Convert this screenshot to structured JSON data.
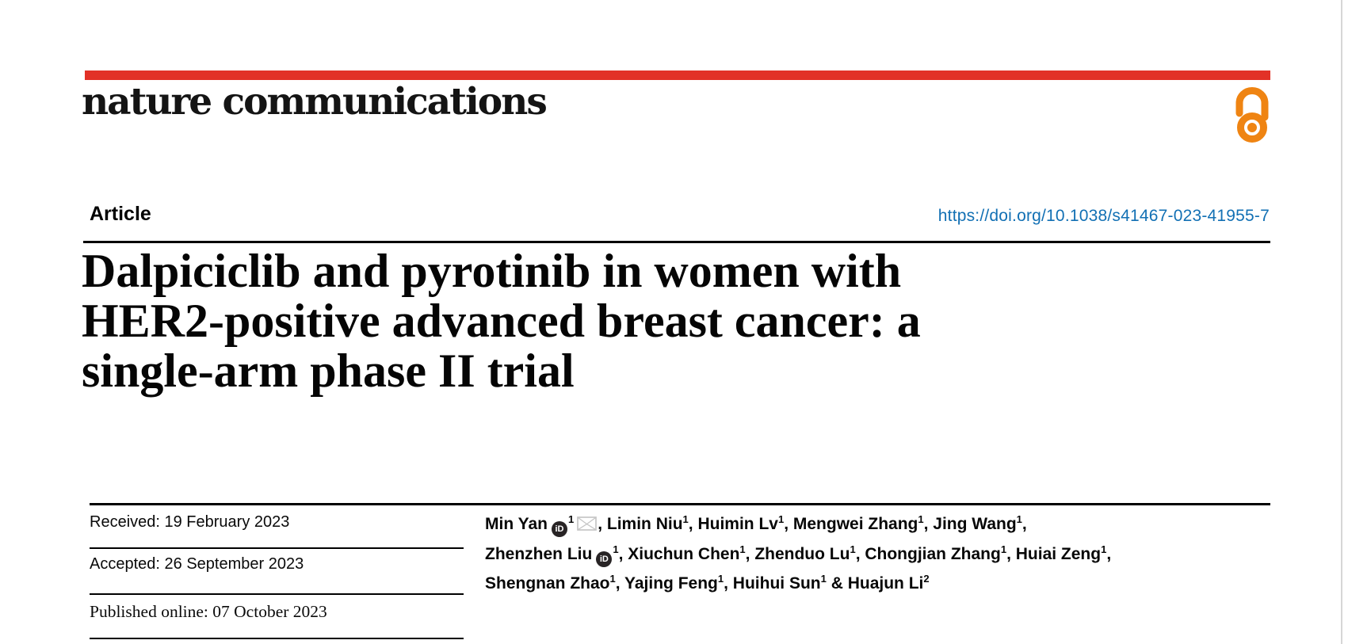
{
  "journal": {
    "name": "nature communications",
    "open_access_icon": "open-access-padlock"
  },
  "colors": {
    "brand_red": "#e23127",
    "open_access_orange": "#ef8412",
    "link_blue": "#1270b4",
    "envelope_gray": "#c6c6c6",
    "text_black": "#050505"
  },
  "article": {
    "kicker": "Article",
    "doi": "https://doi.org/10.1038/s41467-023-41955-7",
    "title_lines": [
      "Dalpiciclib and pyrotinib in women with",
      "HER2-positive advanced breast cancer: a",
      "single-arm phase II trial"
    ]
  },
  "dates": {
    "received": {
      "label": "Received:",
      "value": "19 February 2023"
    },
    "accepted": {
      "label": "Accepted:",
      "value": "26 September 2023"
    },
    "published": {
      "label": "Published online:",
      "value": "07 October 2023"
    }
  },
  "authors": {
    "orcid_badge_text": "iD",
    "lines": [
      [
        {
          "name": "Min Yan",
          "sup": "1",
          "orcid": true,
          "email": true,
          "trailing": ", "
        },
        {
          "name": "Limin Niu",
          "sup": "1",
          "orcid": false,
          "email": false,
          "trailing": ", "
        },
        {
          "name": "Huimin Lv",
          "sup": "1",
          "orcid": false,
          "email": false,
          "trailing": ", "
        },
        {
          "name": "Mengwei Zhang",
          "sup": "1",
          "orcid": false,
          "email": false,
          "trailing": ", "
        },
        {
          "name": "Jing Wang",
          "sup": "1",
          "orcid": false,
          "email": false,
          "trailing": ","
        }
      ],
      [
        {
          "name": "Zhenzhen Liu",
          "sup": "1",
          "orcid": true,
          "email": false,
          "trailing": ", "
        },
        {
          "name": "Xiuchun Chen",
          "sup": "1",
          "orcid": false,
          "email": false,
          "trailing": ", "
        },
        {
          "name": "Zhenduo Lu",
          "sup": "1",
          "orcid": false,
          "email": false,
          "trailing": ", "
        },
        {
          "name": "Chongjian Zhang",
          "sup": "1",
          "orcid": false,
          "email": false,
          "trailing": ", "
        },
        {
          "name": "Huiai Zeng",
          "sup": "1",
          "orcid": false,
          "email": false,
          "trailing": ","
        }
      ],
      [
        {
          "name": "Shengnan Zhao",
          "sup": "1",
          "orcid": false,
          "email": false,
          "trailing": ", "
        },
        {
          "name": "Yajing Feng",
          "sup": "1",
          "orcid": false,
          "email": false,
          "trailing": ", "
        },
        {
          "name": "Huihui Sun",
          "sup": "1",
          "orcid": false,
          "email": false,
          "trailing": " & "
        },
        {
          "name": "Huajun Li",
          "sup": "2",
          "orcid": false,
          "email": false,
          "trailing": ""
        }
      ]
    ]
  }
}
